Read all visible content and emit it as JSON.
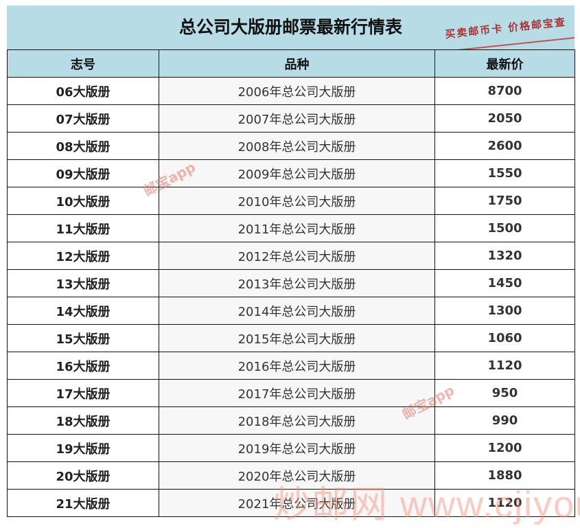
{
  "title": "总公司大版册邮票最新行情表",
  "slogan": "买卖邮币卡  价格邮宝查",
  "columns": [
    "志号",
    "品种",
    "最新价"
  ],
  "rows": [
    [
      "06大版册",
      "2006年总公司大版册",
      "8700"
    ],
    [
      "07大版册",
      "2007年总公司大版册",
      "2050"
    ],
    [
      "08大版册",
      "2008年总公司大版册",
      "2600"
    ],
    [
      "09大版册",
      "2009年总公司大版册",
      "1550"
    ],
    [
      "10大版册",
      "2010年总公司大版册",
      "1750"
    ],
    [
      "11大版册",
      "2011年总公司大版册",
      "1500"
    ],
    [
      "12大版册",
      "2012年总公司大版册",
      "1320"
    ],
    [
      "13大版册",
      "2013年总公司大版册",
      "1450"
    ],
    [
      "14大版册",
      "2014年总公司大版册",
      "1300"
    ],
    [
      "15大版册",
      "2015年总公司大版册",
      "1060"
    ],
    [
      "16大版册",
      "2016年总公司大版册",
      "1120"
    ],
    [
      "17大版册",
      "2017年总公司大版册",
      "950"
    ],
    [
      "18大版册",
      "2018年总公司大版册",
      "990"
    ],
    [
      "19大版册",
      "2019年总公司大版册",
      "1200"
    ],
    [
      "20大版册",
      "2020年总公司大版册",
      "1880"
    ],
    [
      "21大版册",
      "2021年总公司大版册",
      "1120"
    ]
  ],
  "watermarks": [
    "邮宝app",
    "邮宝app",
    "炒邮网 www.cjiyou.net"
  ],
  "colors": {
    "header_bg": "#b8dce6",
    "watermark": "#e6786e"
  }
}
